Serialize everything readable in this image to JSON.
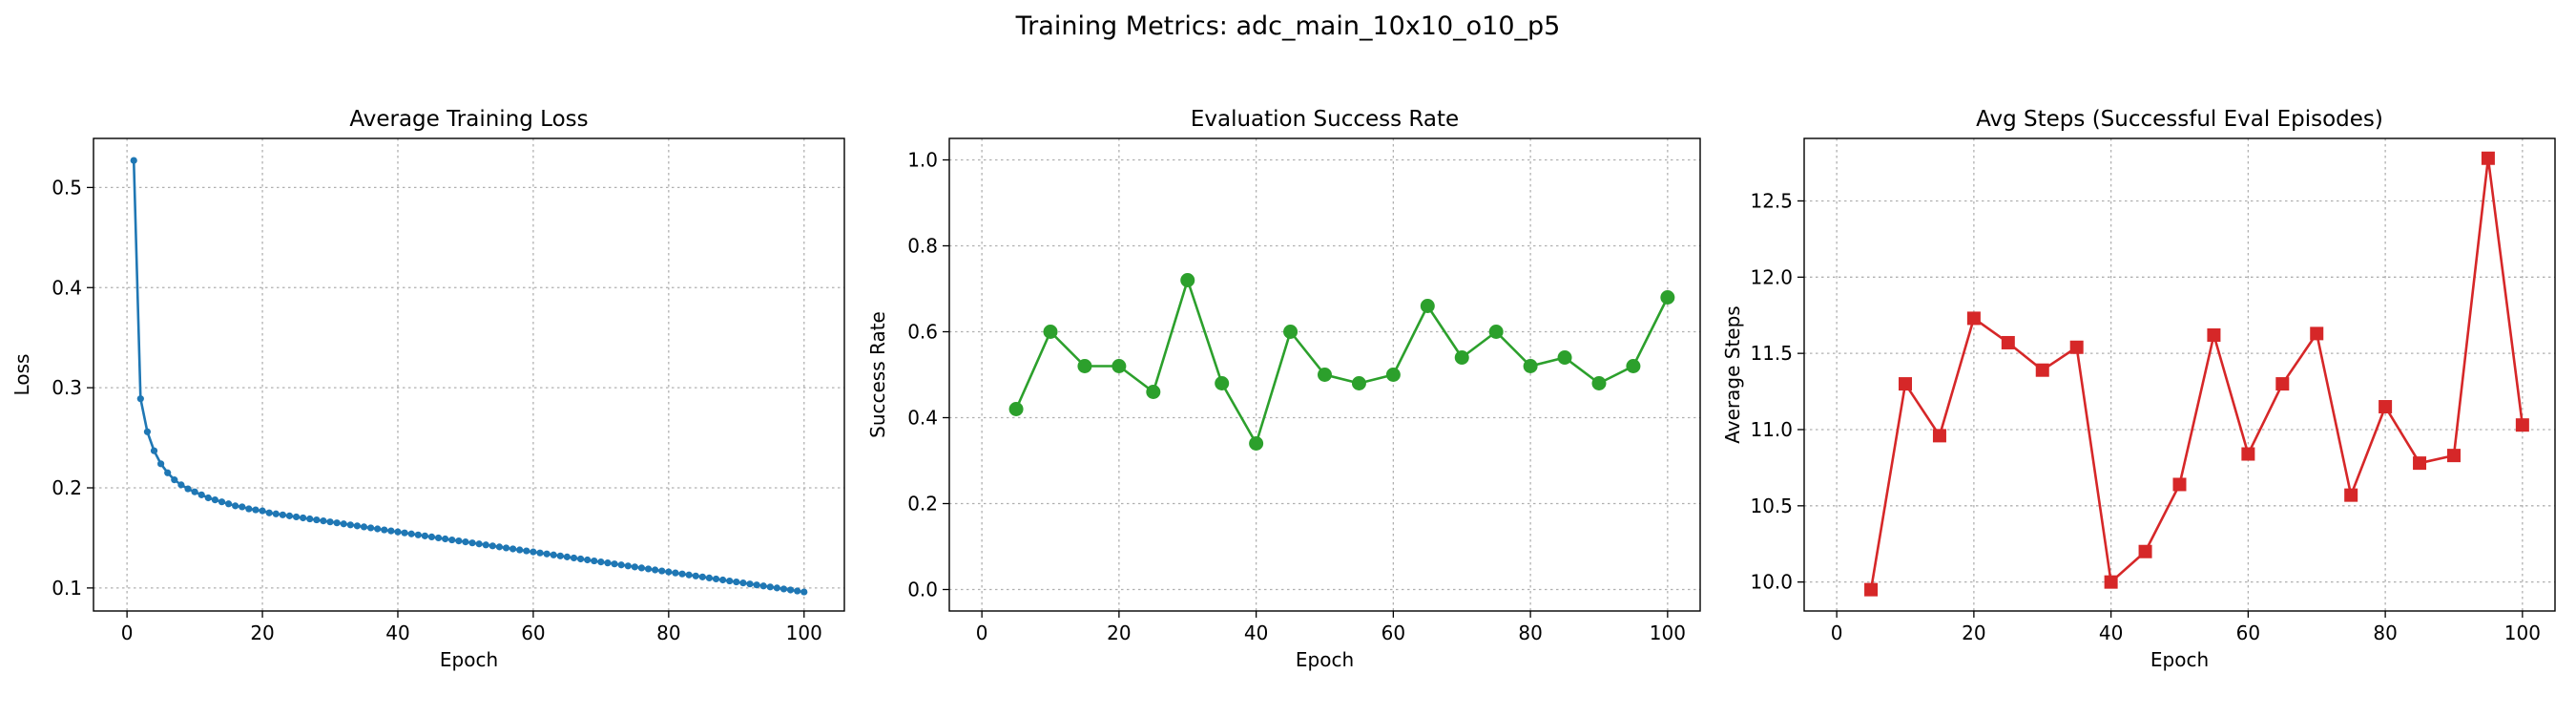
{
  "figure": {
    "suptitle": "Training Metrics: adc_main_10x10_o10_p5"
  },
  "chart_data": [
    {
      "type": "line",
      "title": "Average Training Loss",
      "xlabel": "Epoch",
      "ylabel": "Loss",
      "xlim": [
        -4.95,
        105.95
      ],
      "ylim": [
        0.077,
        0.549
      ],
      "xticks": [
        0,
        20,
        40,
        60,
        80,
        100
      ],
      "yticks": [
        0.1,
        0.2,
        0.3,
        0.4,
        0.5
      ],
      "ytick_labels": [
        "0.1",
        "0.2",
        "0.3",
        "0.4",
        "0.5"
      ],
      "grid": true,
      "color": "#1f77b4",
      "marker": "dot",
      "series": [
        {
          "x": [
            1,
            2,
            3,
            4,
            5,
            6,
            7,
            8,
            9,
            10,
            11,
            12,
            13,
            14,
            15,
            16,
            17,
            18,
            19,
            20,
            21,
            22,
            23,
            24,
            25,
            26,
            27,
            28,
            29,
            30,
            31,
            32,
            33,
            34,
            35,
            36,
            37,
            38,
            39,
            40,
            41,
            42,
            43,
            44,
            45,
            46,
            47,
            48,
            49,
            50,
            51,
            52,
            53,
            54,
            55,
            56,
            57,
            58,
            59,
            60,
            61,
            62,
            63,
            64,
            65,
            66,
            67,
            68,
            69,
            70,
            71,
            72,
            73,
            74,
            75,
            76,
            77,
            78,
            79,
            80,
            81,
            82,
            83,
            84,
            85,
            86,
            87,
            88,
            89,
            90,
            91,
            92,
            93,
            94,
            95,
            96,
            97,
            98,
            99,
            100
          ],
          "values": [
            0.527,
            0.289,
            0.256,
            0.237,
            0.224,
            0.215,
            0.208,
            0.203,
            0.199,
            0.196,
            0.193,
            0.19,
            0.188,
            0.186,
            0.184,
            0.182,
            0.181,
            0.179,
            0.178,
            0.177,
            0.175,
            0.174,
            0.173,
            0.172,
            0.171,
            0.17,
            0.169,
            0.168,
            0.167,
            0.166,
            0.165,
            0.164,
            0.163,
            0.162,
            0.161,
            0.16,
            0.159,
            0.158,
            0.157,
            0.156,
            0.155,
            0.154,
            0.153,
            0.152,
            0.151,
            0.15,
            0.149,
            0.148,
            0.147,
            0.146,
            0.145,
            0.144,
            0.143,
            0.142,
            0.141,
            0.14,
            0.139,
            0.138,
            0.137,
            0.136,
            0.135,
            0.134,
            0.133,
            0.132,
            0.131,
            0.13,
            0.129,
            0.128,
            0.127,
            0.126,
            0.125,
            0.124,
            0.123,
            0.122,
            0.121,
            0.12,
            0.119,
            0.118,
            0.117,
            0.116,
            0.115,
            0.114,
            0.113,
            0.112,
            0.111,
            0.11,
            0.109,
            0.108,
            0.107,
            0.106,
            0.105,
            0.104,
            0.103,
            0.102,
            0.101,
            0.1,
            0.099,
            0.098,
            0.097,
            0.096
          ]
        }
      ]
    },
    {
      "type": "line",
      "title": "Evaluation Success Rate",
      "xlabel": "Epoch",
      "ylabel": "Success Rate",
      "xlim": [
        -4.75,
        104.75
      ],
      "ylim": [
        -0.05,
        1.05
      ],
      "xticks": [
        0,
        20,
        40,
        60,
        80,
        100
      ],
      "yticks": [
        0.0,
        0.2,
        0.4,
        0.6,
        0.8,
        1.0
      ],
      "ytick_labels": [
        "0.0",
        "0.2",
        "0.4",
        "0.6",
        "0.8",
        "1.0"
      ],
      "grid": true,
      "color": "#2ca02c",
      "marker": "circle",
      "series": [
        {
          "x": [
            5,
            10,
            15,
            20,
            25,
            30,
            35,
            40,
            45,
            50,
            55,
            60,
            65,
            70,
            75,
            80,
            85,
            90,
            95,
            100
          ],
          "values": [
            0.42,
            0.6,
            0.52,
            0.52,
            0.46,
            0.72,
            0.48,
            0.34,
            0.6,
            0.5,
            0.48,
            0.5,
            0.66,
            0.54,
            0.6,
            0.52,
            0.54,
            0.48,
            0.52,
            0.68
          ]
        }
      ]
    },
    {
      "type": "line",
      "title": "Avg Steps (Successful Eval Episodes)",
      "xlabel": "Epoch",
      "ylabel": "Average Steps",
      "xlim": [
        -4.75,
        104.75
      ],
      "ylim": [
        9.81,
        12.91
      ],
      "xticks": [
        0,
        20,
        40,
        60,
        80,
        100
      ],
      "yticks": [
        10.0,
        10.5,
        11.0,
        11.5,
        12.0,
        12.5
      ],
      "ytick_labels": [
        "10.0",
        "10.5",
        "11.0",
        "11.5",
        "12.0",
        "12.5"
      ],
      "grid": true,
      "color": "#d62728",
      "marker": "square",
      "series": [
        {
          "x": [
            5,
            10,
            15,
            20,
            25,
            30,
            35,
            40,
            45,
            50,
            55,
            60,
            65,
            70,
            75,
            80,
            85,
            90,
            95,
            100
          ],
          "values": [
            9.95,
            11.3,
            10.96,
            11.73,
            11.57,
            11.39,
            11.54,
            10.0,
            10.2,
            10.64,
            11.62,
            10.84,
            11.3,
            11.63,
            10.57,
            11.15,
            10.78,
            10.83,
            12.78,
            11.03
          ]
        }
      ]
    }
  ]
}
